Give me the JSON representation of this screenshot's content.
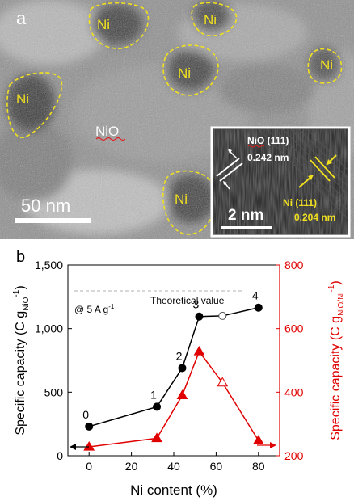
{
  "panel_a": {
    "letter": "a",
    "ni_labels": [
      "Ni",
      "Ni",
      "Ni",
      "Ni",
      "Ni",
      "Ni"
    ],
    "nio_label": "NiO",
    "scale_bar": "50 nm",
    "inset": {
      "nio_plane": "NiO (111)",
      "nio_spacing": "0.242 nm",
      "ni_plane": "Ni (111)",
      "ni_spacing": "0.204 nm",
      "scale_bar": "2 nm"
    },
    "colors": {
      "outline": "#f0e020",
      "ni_text": "#f0e020",
      "nio_text": "#ffffff"
    }
  },
  "panel_b": {
    "letter": "b",
    "theoretical_label": "Theoretical value",
    "rate_label_prefix": "@ 5 A g",
    "rate_label_sup": "-1",
    "colors": {
      "black_series": "#000000",
      "red_series": "#e00000",
      "theory_line": "#b0b0b0"
    }
  },
  "chart_data": {
    "type": "line",
    "xlabel": "Ni content (%)",
    "ylabel_left": "Specific capacity (C g_NiO^-1)",
    "ylabel_right": "Specific capacity (C g_NiO/Ni^-1)",
    "xlim": [
      -10,
      90
    ],
    "xticks": [
      0,
      20,
      40,
      60,
      80
    ],
    "ylim_left": [
      0,
      1500
    ],
    "yticks_left": [
      "0",
      "500",
      "1,000",
      "1,500"
    ],
    "ylim_right": [
      200,
      800
    ],
    "yticks_right": [
      "200",
      "400",
      "600",
      "800"
    ],
    "theoretical_value": 1297,
    "series": [
      {
        "axis": "left",
        "marker": "circle",
        "x": [
          0,
          32,
          44,
          52,
          63,
          80
        ],
        "y": [
          230,
          385,
          690,
          1095,
          1100,
          1165
        ],
        "hollow": [
          false,
          false,
          false,
          false,
          true,
          false
        ],
        "point_labels": [
          "0",
          "1",
          "2",
          "3",
          "",
          "4"
        ]
      },
      {
        "axis": "right",
        "marker": "triangle",
        "x": [
          0,
          32,
          44,
          52,
          63,
          80
        ],
        "y": [
          228,
          255,
          390,
          528,
          430,
          248
        ],
        "hollow": [
          false,
          false,
          false,
          false,
          true,
          false
        ]
      }
    ]
  }
}
